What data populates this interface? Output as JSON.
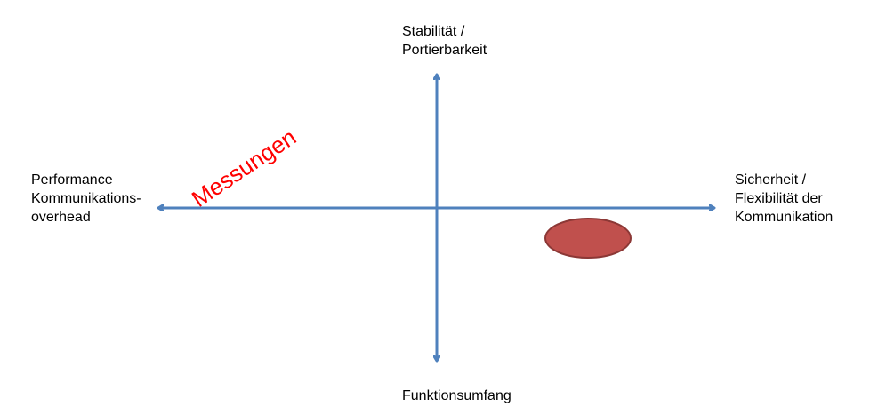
{
  "axes": {
    "top": [
      "Stabilität /",
      "Portierbarkeit"
    ],
    "bottom": [
      "Funktionsumfang"
    ],
    "left": [
      "Performance",
      "Kommunikations-",
      "overhead"
    ],
    "right": [
      "Sicherheit /",
      "Flexibilität der",
      "Kommunikation"
    ]
  },
  "annotation": {
    "text": "Messungen",
    "color": "#ff0000"
  },
  "colors": {
    "axis": "#4f81bd",
    "marker_fill": "#c0504d",
    "marker_stroke": "#8c3836"
  }
}
